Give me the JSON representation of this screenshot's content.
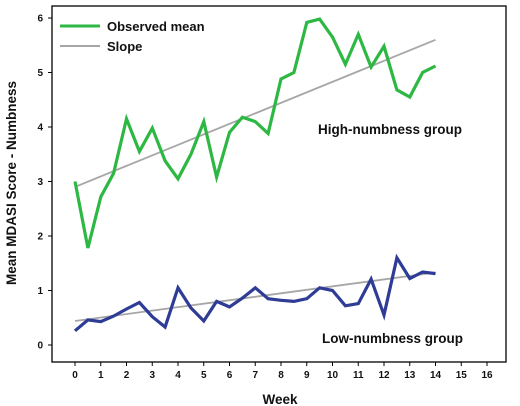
{
  "chart_data": {
    "type": "line",
    "xlabel": "Week",
    "ylabel": "Mean MDASI Score - Numbness",
    "xlim": [
      0,
      16
    ],
    "ylim": [
      0,
      6
    ],
    "x_ticks": [
      0,
      1,
      2,
      3,
      4,
      5,
      6,
      7,
      8,
      9,
      10,
      11,
      12,
      13,
      14,
      15,
      16
    ],
    "x_tick_labels": [
      "0",
      "1",
      "2",
      "3",
      "4",
      "5",
      "6",
      "7",
      "8",
      "9",
      "10",
      "11",
      "12",
      "13",
      "14",
      "15",
      "16"
    ],
    "y_ticks": [
      0,
      1,
      2,
      3,
      4,
      5,
      6
    ],
    "y_tick_labels": [
      "0",
      "1",
      "2",
      "3",
      "4",
      "5",
      "6"
    ],
    "grid": false,
    "legend": {
      "placement": "top-left",
      "items": [
        {
          "label": "Observed mean",
          "color": "#2db843"
        },
        {
          "label": "Slope",
          "color": "#a6a6a6"
        }
      ]
    },
    "annotations": [
      {
        "text": "High-numbness group"
      },
      {
        "text": "Low-numbness group"
      }
    ],
    "series": [
      {
        "group": "high",
        "kind": "observed",
        "color": "#2db843",
        "points": [
          [
            0,
            3.0
          ],
          [
            0.5,
            1.78
          ],
          [
            1,
            2.72
          ],
          [
            1.5,
            3.15
          ],
          [
            2,
            4.15
          ],
          [
            2.5,
            3.55
          ],
          [
            3,
            3.98
          ],
          [
            3.5,
            3.38
          ],
          [
            4,
            3.05
          ],
          [
            4.5,
            3.5
          ],
          [
            5,
            4.1
          ],
          [
            5.5,
            3.08
          ],
          [
            6,
            3.9
          ],
          [
            6.5,
            4.18
          ],
          [
            7,
            4.1
          ],
          [
            7.5,
            3.88
          ],
          [
            8,
            4.88
          ],
          [
            8.5,
            5.0
          ],
          [
            9,
            5.92
          ],
          [
            9.5,
            5.98
          ],
          [
            10,
            5.65
          ],
          [
            10.5,
            5.15
          ],
          [
            11,
            5.7
          ],
          [
            11.5,
            5.1
          ],
          [
            12,
            5.48
          ],
          [
            12.5,
            4.68
          ],
          [
            13,
            4.55
          ],
          [
            13.5,
            5.0
          ],
          [
            14,
            5.12
          ]
        ]
      },
      {
        "group": "high",
        "kind": "slope",
        "color": "#a6a6a6",
        "points": [
          [
            0,
            2.9
          ],
          [
            14,
            5.6
          ]
        ]
      },
      {
        "group": "low",
        "kind": "observed",
        "color": "#2e3c96",
        "points": [
          [
            0,
            0.26
          ],
          [
            0.5,
            0.46
          ],
          [
            1,
            0.43
          ],
          [
            1.5,
            0.53
          ],
          [
            2,
            0.66
          ],
          [
            2.5,
            0.78
          ],
          [
            3,
            0.52
          ],
          [
            3.5,
            0.33
          ],
          [
            4,
            1.05
          ],
          [
            4.5,
            0.68
          ],
          [
            5,
            0.44
          ],
          [
            5.5,
            0.8
          ],
          [
            6,
            0.7
          ],
          [
            6.5,
            0.86
          ],
          [
            7,
            1.05
          ],
          [
            7.5,
            0.85
          ],
          [
            8,
            0.82
          ],
          [
            8.5,
            0.8
          ],
          [
            9,
            0.85
          ],
          [
            9.5,
            1.05
          ],
          [
            10,
            1.0
          ],
          [
            10.5,
            0.72
          ],
          [
            11,
            0.76
          ],
          [
            11.5,
            1.21
          ],
          [
            12,
            0.55
          ],
          [
            12.5,
            1.6
          ],
          [
            13,
            1.22
          ],
          [
            13.5,
            1.34
          ],
          [
            14,
            1.31
          ]
        ]
      },
      {
        "group": "low",
        "kind": "slope",
        "color": "#a6a6a6",
        "points": [
          [
            0,
            0.44
          ],
          [
            14,
            1.33
          ]
        ]
      }
    ]
  }
}
